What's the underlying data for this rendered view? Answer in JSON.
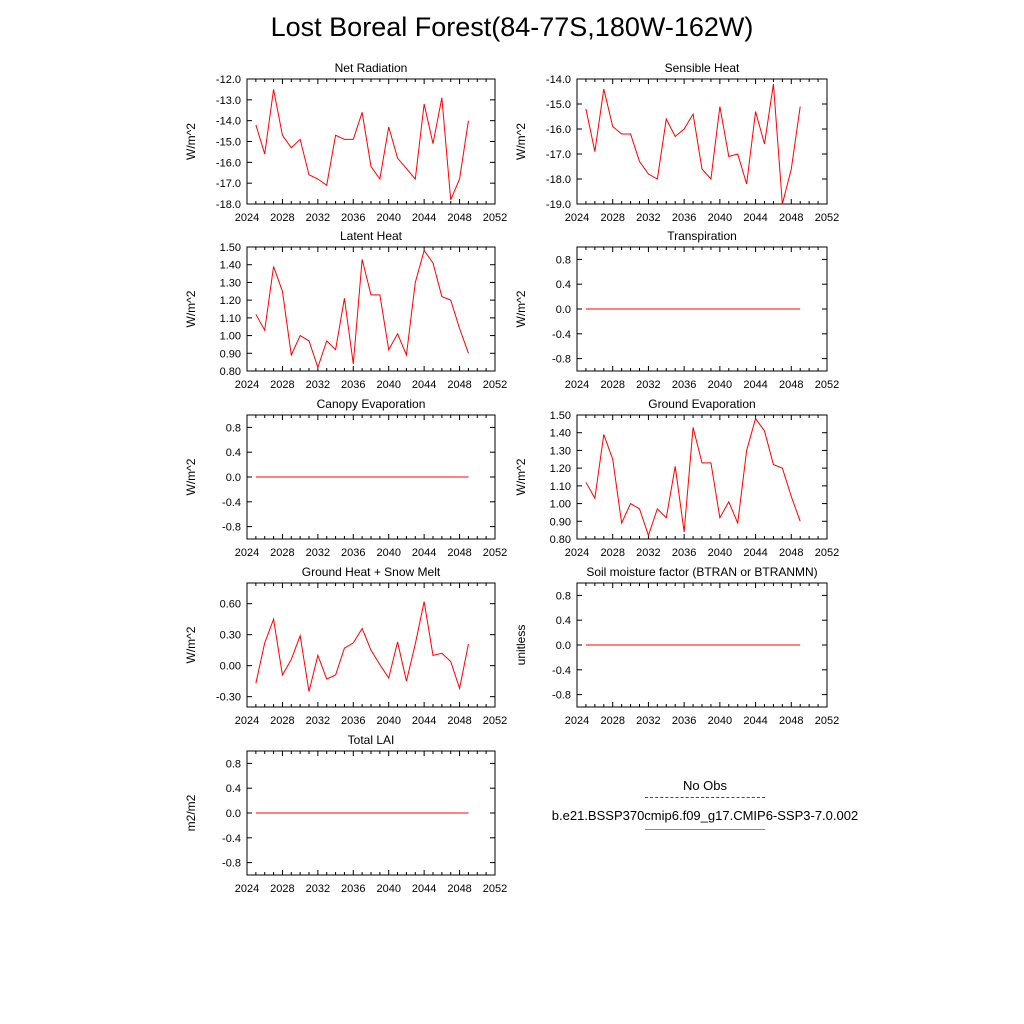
{
  "title": "Lost Boreal Forest(84-77S,180W-162W)",
  "colors": {
    "model": "#ff0000",
    "obs": "#3b3bb5",
    "model_legend": "#e06060"
  },
  "legend": {
    "obs_label": "No Obs",
    "model_label": "b.e21.BSSP370cmip6.f09_g17.CMIP6-SSP3-7.0.002"
  },
  "chart_data": [
    {
      "type": "line",
      "title": "Net Radiation",
      "ylabel": "W/m^2",
      "xlim": [
        2024,
        2052
      ],
      "xticks": [
        "2024",
        "2028",
        "2032",
        "2036",
        "2040",
        "2044",
        "2048",
        "2052"
      ],
      "ylim": [
        -18,
        -12
      ],
      "yticks": [
        "-12.0",
        "-13.0",
        "-14.0",
        "-15.0",
        "-16.0",
        "-17.0",
        "-18.0"
      ],
      "x": [
        2025,
        2026,
        2027,
        2028,
        2029,
        2030,
        2031,
        2032,
        2033,
        2034,
        2035,
        2036,
        2037,
        2038,
        2039,
        2040,
        2041,
        2042,
        2043,
        2044,
        2045,
        2046,
        2047,
        2048,
        2049
      ],
      "series": [
        {
          "values": [
            -14.2,
            -15.6,
            -12.5,
            -14.7,
            -15.3,
            -14.9,
            -16.6,
            -16.8,
            -17.1,
            -14.7,
            -14.9,
            -14.9,
            -13.6,
            -16.2,
            -16.8,
            -14.3,
            -15.8,
            -16.3,
            -16.8,
            -13.2,
            -15.1,
            -12.9,
            -17.8,
            -16.8,
            -14.0
          ]
        }
      ]
    },
    {
      "type": "line",
      "title": "Sensible Heat",
      "ylabel": "W/m^2",
      "xlim": [
        2024,
        2052
      ],
      "xticks": [
        "2024",
        "2028",
        "2032",
        "2036",
        "2040",
        "2044",
        "2048",
        "2052"
      ],
      "ylim": [
        -19,
        -14
      ],
      "yticks": [
        "-14.0",
        "-15.0",
        "-16.0",
        "-17.0",
        "-18.0",
        "-19.0"
      ],
      "x": [
        2025,
        2026,
        2027,
        2028,
        2029,
        2030,
        2031,
        2032,
        2033,
        2034,
        2035,
        2036,
        2037,
        2038,
        2039,
        2040,
        2041,
        2042,
        2043,
        2044,
        2045,
        2046,
        2047,
        2048,
        2049
      ],
      "series": [
        {
          "values": [
            -15.2,
            -16.9,
            -14.4,
            -15.9,
            -16.2,
            -16.2,
            -17.3,
            -17.8,
            -18.0,
            -15.6,
            -16.3,
            -16.0,
            -15.4,
            -17.6,
            -18.0,
            -15.1,
            -17.1,
            -17.0,
            -18.2,
            -15.3,
            -16.6,
            -14.2,
            -19.0,
            -17.6,
            -15.1
          ]
        }
      ]
    },
    {
      "type": "line",
      "title": "Latent Heat",
      "ylabel": "W/m^2",
      "xlim": [
        2024,
        2052
      ],
      "xticks": [
        "2024",
        "2028",
        "2032",
        "2036",
        "2040",
        "2044",
        "2048",
        "2052"
      ],
      "ylim": [
        0.8,
        1.5
      ],
      "yticks": [
        "1.50",
        "1.40",
        "1.30",
        "1.20",
        "1.10",
        "1.00",
        "0.90",
        "0.80"
      ],
      "x": [
        2025,
        2026,
        2027,
        2028,
        2029,
        2030,
        2031,
        2032,
        2033,
        2034,
        2035,
        2036,
        2037,
        2038,
        2039,
        2040,
        2041,
        2042,
        2043,
        2044,
        2045,
        2046,
        2047,
        2048,
        2049
      ],
      "series": [
        {
          "values": [
            1.12,
            1.03,
            1.39,
            1.25,
            0.89,
            1.0,
            0.97,
            0.82,
            0.97,
            0.92,
            1.21,
            0.84,
            1.43,
            1.23,
            1.23,
            0.92,
            1.01,
            0.89,
            1.3,
            1.48,
            1.41,
            1.22,
            1.2,
            1.04,
            0.9
          ]
        }
      ]
    },
    {
      "type": "line",
      "title": "Transpiration",
      "ylabel": "W/m^2",
      "xlim": [
        2024,
        2052
      ],
      "xticks": [
        "2024",
        "2028",
        "2032",
        "2036",
        "2040",
        "2044",
        "2048",
        "2052"
      ],
      "ylim": [
        -1.0,
        1.0
      ],
      "yticks": [
        "0.8",
        "0.4",
        "0.0",
        "-0.4",
        "-0.8"
      ],
      "x": [
        2025,
        2049
      ],
      "series": [
        {
          "values": [
            0.0,
            0.0
          ]
        }
      ]
    },
    {
      "type": "line",
      "title": "Canopy Evaporation",
      "ylabel": "W/m^2",
      "xlim": [
        2024,
        2052
      ],
      "xticks": [
        "2024",
        "2028",
        "2032",
        "2036",
        "2040",
        "2044",
        "2048",
        "2052"
      ],
      "ylim": [
        -1.0,
        1.0
      ],
      "yticks": [
        "0.8",
        "0.4",
        "0.0",
        "-0.4",
        "-0.8"
      ],
      "x": [
        2025,
        2049
      ],
      "series": [
        {
          "values": [
            0.0,
            0.0
          ]
        }
      ]
    },
    {
      "type": "line",
      "title": "Ground Evaporation",
      "ylabel": "W/m^2",
      "xlim": [
        2024,
        2052
      ],
      "xticks": [
        "2024",
        "2028",
        "2032",
        "2036",
        "2040",
        "2044",
        "2048",
        "2052"
      ],
      "ylim": [
        0.8,
        1.5
      ],
      "yticks": [
        "1.50",
        "1.40",
        "1.30",
        "1.20",
        "1.10",
        "1.00",
        "0.90",
        "0.80"
      ],
      "x": [
        2025,
        2026,
        2027,
        2028,
        2029,
        2030,
        2031,
        2032,
        2033,
        2034,
        2035,
        2036,
        2037,
        2038,
        2039,
        2040,
        2041,
        2042,
        2043,
        2044,
        2045,
        2046,
        2047,
        2048,
        2049
      ],
      "series": [
        {
          "values": [
            1.12,
            1.03,
            1.39,
            1.25,
            0.89,
            1.0,
            0.97,
            0.82,
            0.97,
            0.92,
            1.21,
            0.84,
            1.43,
            1.23,
            1.23,
            0.92,
            1.01,
            0.89,
            1.3,
            1.48,
            1.41,
            1.22,
            1.2,
            1.04,
            0.9
          ]
        }
      ]
    },
    {
      "type": "line",
      "title": "Ground Heat + Snow Melt",
      "ylabel": "W/m^2",
      "xlim": [
        2024,
        2052
      ],
      "xticks": [
        "2024",
        "2028",
        "2032",
        "2036",
        "2040",
        "2044",
        "2048",
        "2052"
      ],
      "ylim": [
        -0.4,
        0.8
      ],
      "yticks": [
        "0.60",
        "0.30",
        "0.00",
        "-0.30"
      ],
      "x": [
        2025,
        2026,
        2027,
        2028,
        2029,
        2030,
        2031,
        2032,
        2033,
        2034,
        2035,
        2036,
        2037,
        2038,
        2039,
        2040,
        2041,
        2042,
        2043,
        2044,
        2045,
        2046,
        2047,
        2048,
        2049
      ],
      "series": [
        {
          "values": [
            -0.17,
            0.22,
            0.45,
            -0.09,
            0.06,
            0.29,
            -0.25,
            0.1,
            -0.13,
            -0.09,
            0.17,
            0.22,
            0.36,
            0.15,
            0.01,
            -0.12,
            0.23,
            -0.15,
            0.21,
            0.62,
            0.1,
            0.12,
            0.04,
            -0.22,
            0.21
          ]
        }
      ]
    },
    {
      "type": "line",
      "title": "Soil moisture factor (BTRAN or BTRANMN)",
      "ylabel": "unitless",
      "xlim": [
        2024,
        2052
      ],
      "xticks": [
        "2024",
        "2028",
        "2032",
        "2036",
        "2040",
        "2044",
        "2048",
        "2052"
      ],
      "ylim": [
        -1.0,
        1.0
      ],
      "yticks": [
        "0.8",
        "0.4",
        "0.0",
        "-0.4",
        "-0.8"
      ],
      "x": [
        2025,
        2049
      ],
      "series": [
        {
          "values": [
            0.0,
            0.0
          ]
        }
      ]
    },
    {
      "type": "line",
      "title": "Total LAI",
      "ylabel": "m2/m2",
      "xlim": [
        2024,
        2052
      ],
      "xticks": [
        "2024",
        "2028",
        "2032",
        "2036",
        "2040",
        "2044",
        "2048",
        "2052"
      ],
      "ylim": [
        -1.0,
        1.0
      ],
      "yticks": [
        "0.8",
        "0.4",
        "0.0",
        "-0.4",
        "-0.8"
      ],
      "x": [
        2025,
        2049
      ],
      "series": [
        {
          "values": [
            0.0,
            0.0
          ]
        }
      ]
    }
  ]
}
